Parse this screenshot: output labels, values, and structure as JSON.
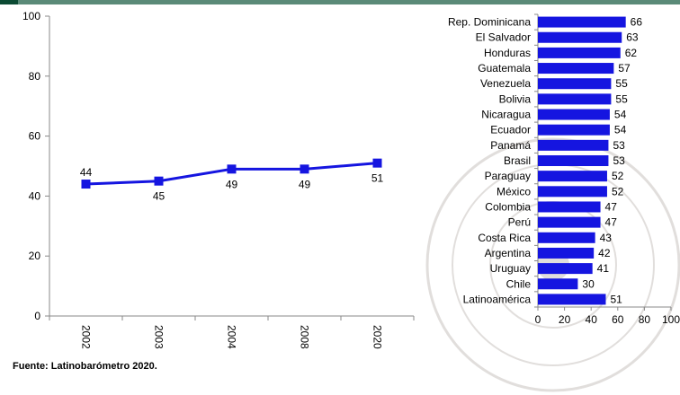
{
  "chart_data": [
    {
      "type": "line",
      "x": [
        "2002",
        "2003",
        "2004",
        "2008",
        "2020"
      ],
      "values": [
        44,
        45,
        49,
        49,
        51
      ],
      "ylim": [
        0,
        100
      ],
      "yticks": [
        "0",
        "20",
        "40",
        "60",
        "80",
        "100"
      ],
      "color": "#1515e0",
      "grid": false
    },
    {
      "type": "bar",
      "orientation": "horizontal",
      "categories": [
        "Rep. Dominicana",
        "El Salvador",
        "Honduras",
        "Guatemala",
        "Venezuela",
        "Bolivia",
        "Nicaragua",
        "Ecuador",
        "Panamá",
        "Brasil",
        "Paraguay",
        "México",
        "Colombia",
        "Perú",
        "Costa Rica",
        "Argentina",
        "Uruguay",
        "Chile",
        "Latinoamérica"
      ],
      "values": [
        66,
        63,
        62,
        57,
        55,
        55,
        54,
        54,
        53,
        53,
        52,
        52,
        47,
        47,
        43,
        42,
        41,
        30,
        51
      ],
      "xlim": [
        0,
        100
      ],
      "xticks": [
        "0",
        "20",
        "40",
        "60",
        "80",
        "100"
      ],
      "color": "#1515e0",
      "grid": false
    }
  ],
  "source_note": "Fuente: Latinobarómetro 2020."
}
